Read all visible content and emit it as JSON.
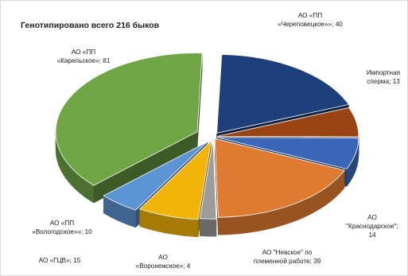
{
  "chart_data": {
    "type": "pie",
    "title": "Генотипировано всего 216 быков",
    "slices": [
      {
        "label_lines": [
          "АО «ПП",
          "«Череповецкое»»; 40"
        ],
        "value": 40,
        "color": "#1f3f7a"
      },
      {
        "label_lines": [
          "Импортная",
          "сперма; 13"
        ],
        "value": 13,
        "color": "#9a4413"
      },
      {
        "label_lines": [
          "АО",
          "\"Краснодарское\";",
          "14"
        ],
        "value": 14,
        "color": "#3a67b8"
      },
      {
        "label_lines": [
          "АО \"Невское\" по",
          "племенной работе; 39"
        ],
        "value": 39,
        "color": "#e07a30"
      },
      {
        "label_lines": [
          "АО",
          "«Воронежское»; 4"
        ],
        "value": 4,
        "color": "#9c9c9c"
      },
      {
        "label_lines": [
          "АО «ГЦВ»; 15"
        ],
        "value": 15,
        "color": "#f2b40a"
      },
      {
        "label_lines": [
          "АО «ПП",
          "«Вологодское»»; 10"
        ],
        "value": 10,
        "color": "#5c93d4"
      },
      {
        "label_lines": [
          "АО «ПП",
          "«Карельское»; 81"
        ],
        "value": 81,
        "color": "#6fa545"
      }
    ],
    "legend": "none",
    "style": "3d-exploded"
  }
}
